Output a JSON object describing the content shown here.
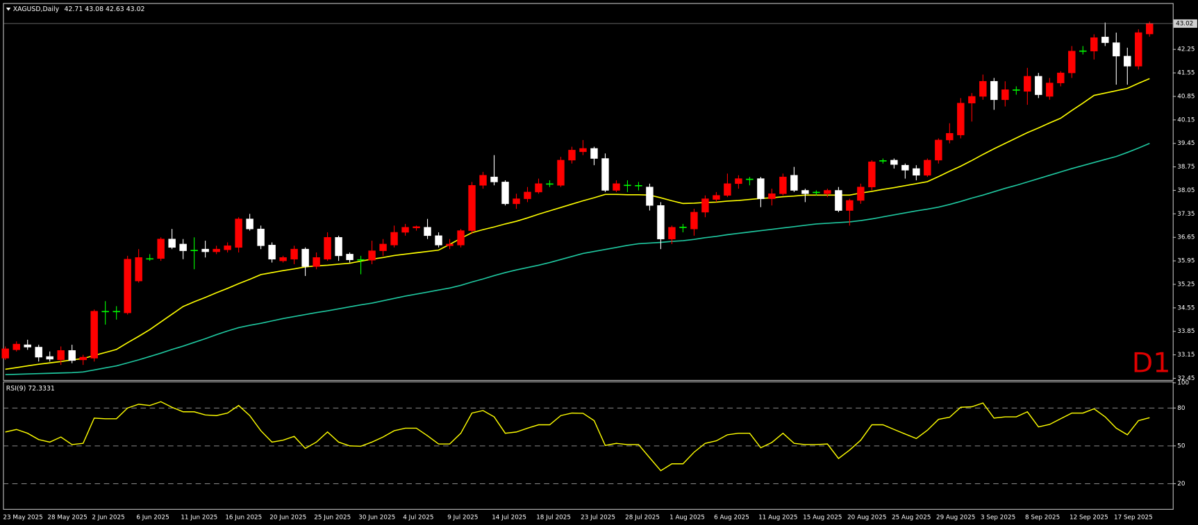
{
  "chart_data": [
    {
      "type": "candlestick",
      "title": "XAGUSD,Daily",
      "annotation": "D1",
      "categories": [
        "23 May 2025",
        null,
        null,
        null,
        "28 May 2025",
        null,
        null,
        null,
        "2 Jun 2025",
        null,
        null,
        null,
        "6 Jun 2025",
        null,
        null,
        null,
        "11 Jun 2025",
        null,
        null,
        null,
        "16 Jun 2025",
        null,
        null,
        null,
        "20 Jun 2025",
        null,
        null,
        null,
        "25 Jun 2025",
        null,
        null,
        null,
        "30 Jun 2025",
        null,
        null,
        null,
        "4 Jul 2025",
        null,
        null,
        null,
        "9 Jul 2025",
        null,
        null,
        null,
        "14 Jul 2025",
        null,
        null,
        null,
        "18 Jul 2025",
        null,
        null,
        null,
        "23 Jul 2025",
        null,
        null,
        null,
        "28 Jul 2025",
        null,
        null,
        null,
        "1 Aug 2025",
        null,
        null,
        null,
        "6 Aug 2025",
        null,
        null,
        null,
        "11 Aug 2025",
        null,
        null,
        null,
        "15 Aug 2025",
        null,
        null,
        null,
        "20 Aug 2025",
        null,
        null,
        null,
        "25 Aug 2025",
        null,
        null,
        null,
        "29 Aug 2025",
        null,
        null,
        null,
        "3 Sep 2025",
        null,
        null,
        null,
        "8 Sep 2025",
        null,
        null,
        null,
        "12 Sep 2025",
        null,
        null,
        null,
        "17 Sep 2025",
        null,
        null,
        null
      ],
      "open": [
        33.05,
        33.3,
        33.45,
        33.38,
        33.1,
        33.0,
        33.28,
        33.0,
        33.05,
        34.45,
        34.45,
        34.4,
        35.35,
        36.02,
        36.02,
        36.6,
        36.45,
        36.27,
        36.3,
        36.22,
        36.28,
        36.35,
        37.2,
        36.9,
        36.42,
        35.95,
        36.0,
        36.3,
        35.78,
        36.0,
        36.65,
        36.15,
        35.99,
        35.97,
        36.25,
        36.42,
        36.8,
        36.93,
        36.95,
        36.7,
        36.4,
        36.42,
        36.85,
        38.2,
        38.45,
        38.3,
        37.65,
        37.8,
        38.0,
        38.25,
        38.2,
        38.95,
        39.2,
        39.3,
        39.0,
        38.05,
        38.21,
        38.2,
        38.15,
        37.6,
        36.6,
        36.96,
        36.9,
        37.4,
        37.78,
        37.9,
        38.25,
        38.39,
        38.4,
        37.8,
        37.95,
        38.5,
        38.05,
        38.0,
        37.95,
        38.05,
        37.45,
        37.75,
        38.15,
        38.94,
        38.95,
        38.8,
        38.7,
        38.5,
        38.95,
        39.55,
        39.7,
        40.65,
        40.85,
        41.3,
        40.75,
        41.05,
        41.0,
        41.45,
        40.85,
        41.25,
        41.55,
        42.21,
        42.2,
        42.62,
        42.45,
        42.05,
        41.75,
        42.71
      ],
      "high": [
        33.4,
        33.55,
        33.6,
        33.45,
        33.25,
        33.4,
        33.45,
        33.15,
        34.5,
        34.75,
        34.6,
        36.1,
        36.3,
        36.15,
        36.65,
        36.9,
        36.6,
        36.65,
        36.55,
        36.4,
        36.5,
        37.25,
        37.35,
        37.0,
        36.5,
        36.1,
        36.4,
        36.35,
        36.2,
        36.8,
        36.7,
        36.2,
        36.1,
        36.55,
        36.6,
        37.0,
        37.05,
        37.0,
        37.2,
        36.8,
        36.6,
        36.9,
        38.3,
        38.6,
        39.1,
        38.35,
        37.95,
        38.15,
        38.4,
        38.35,
        39.05,
        39.35,
        39.55,
        39.35,
        39.15,
        38.35,
        38.35,
        38.3,
        38.25,
        37.7,
        37.0,
        37.05,
        37.5,
        37.9,
        38.0,
        38.55,
        38.5,
        38.45,
        38.45,
        38.1,
        38.55,
        38.75,
        38.1,
        38.05,
        38.1,
        38.15,
        37.8,
        38.25,
        38.95,
        39.0,
        39.0,
        38.85,
        38.8,
        39.0,
        39.6,
        40.05,
        40.8,
        40.95,
        41.5,
        41.4,
        41.3,
        41.15,
        41.7,
        41.55,
        41.4,
        41.6,
        42.35,
        42.35,
        42.7,
        43.05,
        42.75,
        42.3,
        42.85,
        43.08
      ],
      "low": [
        33.0,
        33.25,
        33.3,
        32.95,
        32.95,
        32.85,
        32.9,
        32.85,
        32.95,
        34.05,
        34.2,
        34.35,
        35.3,
        35.95,
        35.95,
        36.3,
        36.0,
        35.7,
        36.05,
        36.15,
        36.2,
        36.2,
        36.85,
        36.3,
        35.9,
        35.9,
        35.85,
        35.5,
        35.7,
        35.95,
        35.95,
        35.9,
        35.55,
        35.85,
        36.1,
        36.35,
        36.7,
        36.85,
        36.6,
        36.35,
        36.3,
        36.35,
        36.75,
        38.1,
        38.2,
        37.6,
        37.5,
        37.7,
        37.95,
        38.15,
        38.15,
        38.85,
        39.1,
        38.8,
        38.0,
        38.0,
        38.0,
        38.05,
        37.45,
        36.3,
        36.45,
        36.8,
        36.7,
        37.25,
        37.7,
        37.85,
        38.1,
        38.2,
        37.55,
        37.6,
        37.9,
        38.0,
        37.7,
        37.9,
        37.85,
        37.4,
        37.0,
        37.65,
        38.05,
        38.85,
        38.7,
        38.4,
        38.35,
        38.45,
        38.85,
        39.45,
        39.6,
        40.1,
        40.75,
        40.45,
        40.55,
        40.9,
        40.6,
        40.8,
        40.75,
        41.15,
        41.4,
        42.1,
        41.95,
        42.35,
        41.2,
        41.2,
        41.65,
        42.63
      ],
      "close": [
        33.33,
        33.47,
        33.38,
        33.08,
        33.02,
        33.28,
        32.98,
        33.08,
        34.45,
        34.45,
        34.45,
        36.0,
        36.05,
        36.02,
        36.6,
        36.35,
        36.25,
        36.27,
        36.22,
        36.3,
        36.4,
        37.2,
        36.9,
        36.4,
        36.0,
        36.05,
        36.3,
        35.78,
        36.05,
        36.65,
        36.1,
        35.98,
        35.99,
        36.25,
        36.45,
        36.8,
        36.95,
        36.97,
        36.7,
        36.42,
        36.45,
        36.85,
        38.2,
        38.5,
        38.3,
        37.65,
        37.8,
        38.0,
        38.25,
        38.25,
        38.95,
        39.25,
        39.3,
        39.0,
        38.05,
        38.25,
        38.21,
        38.2,
        37.6,
        36.6,
        36.95,
        36.96,
        37.4,
        37.8,
        37.9,
        38.25,
        38.4,
        38.39,
        37.8,
        37.95,
        38.45,
        38.05,
        37.95,
        38.0,
        38.05,
        37.45,
        37.75,
        38.15,
        38.9,
        38.94,
        38.82,
        38.65,
        38.5,
        38.95,
        39.55,
        39.75,
        40.65,
        40.85,
        41.3,
        40.75,
        41.05,
        41.05,
        41.45,
        40.9,
        41.25,
        41.55,
        42.2,
        42.21,
        42.6,
        42.45,
        42.05,
        41.75,
        42.75,
        43.02
      ],
      "up_color": "#ff0000",
      "down_color": "#ffffff",
      "doji_color": "#00ff00",
      "series": [
        {
          "color": "#ffff00",
          "values": [
            32.72,
            32.77,
            32.82,
            32.87,
            32.91,
            32.95,
            33.0,
            33.04,
            33.13,
            33.22,
            33.31,
            33.51,
            33.7,
            33.9,
            34.13,
            34.36,
            34.59,
            34.73,
            34.86,
            35.0,
            35.13,
            35.27,
            35.4,
            35.54,
            35.6,
            35.66,
            35.71,
            35.77,
            35.8,
            35.82,
            35.85,
            35.88,
            35.94,
            36.0,
            36.05,
            36.11,
            36.15,
            36.19,
            36.23,
            36.27,
            36.44,
            36.62,
            36.79,
            36.88,
            36.96,
            37.05,
            37.13,
            37.23,
            37.34,
            37.44,
            37.54,
            37.64,
            37.74,
            37.83,
            37.93,
            37.93,
            37.92,
            37.92,
            37.91,
            37.83,
            37.74,
            37.66,
            37.67,
            37.69,
            37.7,
            37.73,
            37.75,
            37.78,
            37.81,
            37.83,
            37.86,
            37.88,
            37.91,
            37.91,
            37.91,
            37.91,
            37.91,
            37.97,
            38.02,
            38.08,
            38.13,
            38.19,
            38.25,
            38.31,
            38.46,
            38.62,
            38.77,
            38.94,
            39.12,
            39.29,
            39.45,
            39.61,
            39.77,
            39.91,
            40.06,
            40.2,
            40.43,
            40.65,
            40.88,
            40.95,
            41.02,
            41.09,
            41.24,
            41.38
          ]
        },
        {
          "color": "#1fc8a0",
          "values": [
            32.56,
            32.57,
            32.58,
            32.59,
            32.6,
            32.61,
            32.62,
            32.64,
            32.7,
            32.76,
            32.82,
            32.91,
            33.0,
            33.1,
            33.2,
            33.31,
            33.41,
            33.52,
            33.63,
            33.75,
            33.86,
            33.96,
            34.03,
            34.09,
            34.16,
            34.23,
            34.29,
            34.35,
            34.41,
            34.46,
            34.52,
            34.58,
            34.64,
            34.69,
            34.76,
            34.83,
            34.9,
            34.96,
            35.02,
            35.08,
            35.14,
            35.22,
            35.32,
            35.41,
            35.51,
            35.6,
            35.68,
            35.75,
            35.82,
            35.9,
            35.99,
            36.08,
            36.17,
            36.23,
            36.29,
            36.35,
            36.41,
            36.46,
            36.48,
            36.5,
            36.53,
            36.55,
            36.59,
            36.64,
            36.68,
            36.73,
            36.77,
            36.81,
            36.85,
            36.89,
            36.93,
            36.97,
            37.01,
            37.05,
            37.07,
            37.09,
            37.11,
            37.15,
            37.2,
            37.26,
            37.32,
            37.38,
            37.44,
            37.49,
            37.55,
            37.63,
            37.72,
            37.82,
            37.91,
            38.01,
            38.11,
            38.2,
            38.3,
            38.4,
            38.5,
            38.6,
            38.7,
            38.79,
            38.88,
            38.97,
            39.06,
            39.18,
            39.31,
            39.45
          ]
        }
      ],
      "ylim": [
        32.4,
        43.63
      ],
      "yticks": [
        32.45,
        33.15,
        33.85,
        34.55,
        35.25,
        35.95,
        36.65,
        37.35,
        38.05,
        38.75,
        39.45,
        40.15,
        40.85,
        41.55,
        42.25
      ]
    },
    {
      "type": "line",
      "title": "RSI(9)",
      "color": "#ffff00",
      "values": [
        61,
        63,
        60,
        55,
        53,
        57,
        51,
        52,
        72,
        71.5,
        71.5,
        80,
        83,
        82,
        85,
        80.6,
        77,
        77,
        74.5,
        74,
        76,
        82,
        74,
        62,
        53,
        54.5,
        57.5,
        48,
        53,
        61,
        53,
        50,
        49.7,
        53,
        57,
        62,
        64,
        64,
        58,
        51.5,
        51.5,
        60,
        76,
        78,
        73,
        60,
        61,
        64,
        66.7,
        66.7,
        74,
        76,
        75.8,
        70,
        50.3,
        52,
        51,
        51,
        40.6,
        30.3,
        35.8,
        35.8,
        45,
        52,
        54,
        58.8,
        60,
        60,
        48.5,
        52.7,
        60,
        52,
        51,
        51,
        51.5,
        40,
        46.7,
        54.5,
        66.7,
        66.7,
        63,
        59.4,
        55.8,
        62.4,
        71,
        72.7,
        80.6,
        81,
        84,
        72,
        73,
        73,
        77,
        65,
        67,
        71.5,
        76,
        76,
        79.4,
        73,
        64,
        58.8,
        70,
        72.3331
      ],
      "ylim": [
        0,
        101
      ],
      "yticks": [
        20,
        50,
        80,
        100
      ],
      "levels": [
        20,
        50,
        80
      ]
    }
  ]
}
